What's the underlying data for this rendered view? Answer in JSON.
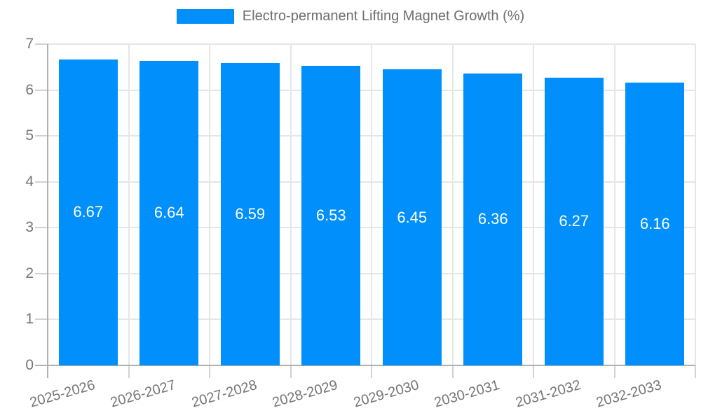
{
  "chart_data": {
    "type": "bar",
    "title": "Electro-permanent Lifting Magnet Growth (%)",
    "categories": [
      "2025-2026",
      "2026-2027",
      "2027-2028",
      "2028-2029",
      "2029-2030",
      "2030-2031",
      "2031-2032",
      "2032-2033"
    ],
    "series": [
      {
        "name": "Electro-permanent Lifting Magnet Growth (%)",
        "values": [
          6.67,
          6.64,
          6.59,
          6.53,
          6.45,
          6.36,
          6.27,
          6.16
        ]
      }
    ],
    "bar_value_labels": [
      "6.67",
      "6.64",
      "6.59",
      "6.53",
      "6.45",
      "6.36",
      "6.27",
      "6.16"
    ],
    "ytick_labels": [
      "0",
      "1",
      "2",
      "3",
      "4",
      "5",
      "6",
      "7"
    ],
    "yticks": [
      0,
      1,
      2,
      3,
      4,
      5,
      6,
      7
    ],
    "ylim": [
      0,
      7
    ],
    "xlabel": "",
    "ylabel": "",
    "grid": true,
    "legend_position": "top",
    "colors": {
      "bar": "#008FFB",
      "bar_label": "#FFFFFF",
      "axis_text": "#757575",
      "legend_text": "#6E6E6E",
      "grid_line": "#E6E6E6",
      "tick_line": "#D2D2D2",
      "axis_line": "#B0B0B0",
      "background": "#FFFFFF"
    }
  }
}
